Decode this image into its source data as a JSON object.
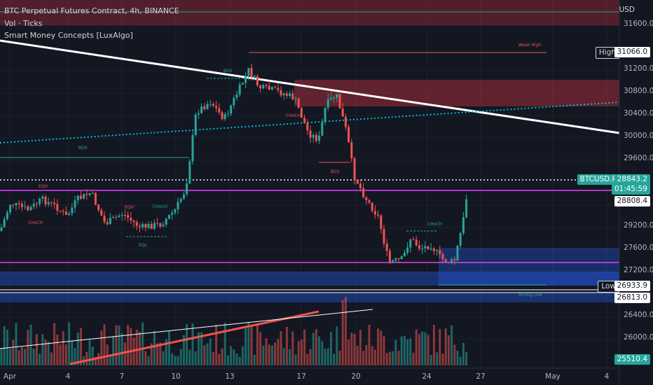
{
  "header": {
    "symbol_line": "BTC Perpetual Futures Contract, 4h, BINANCE",
    "volume_indicator": "Vol · Ticks",
    "smc_indicator": "Smart Money Concepts [LuxAlgo]",
    "currency": "USD"
  },
  "price_axis": {
    "ticks": [
      "31600.0",
      "31200.0",
      "30800.0",
      "30400.0",
      "30000.0",
      "29600.0",
      "29200.0",
      "27600.0",
      "27200.0",
      "26400.0",
      "26000.0"
    ]
  },
  "markers": {
    "high": {
      "label": "High",
      "value": "31066.0"
    },
    "last": {
      "label": "BTCUSD.P",
      "value": "28843.2",
      "countdown": "01:45:59"
    },
    "line_28808": {
      "value": "28808.4"
    },
    "low": {
      "label": "Low",
      "value": "26933.9"
    },
    "line_26813": {
      "value": "26813.0"
    },
    "volume_last": {
      "value": "25510.4"
    }
  },
  "time_axis": {
    "ticks": [
      "Apr",
      "4",
      "7",
      "10",
      "13",
      "17",
      "20",
      "24",
      "27",
      "May",
      "4"
    ]
  },
  "smc_labels": {
    "bos": "BOS",
    "choch": "CHoCH",
    "eqh": "EQH",
    "eql": "EQL",
    "weak_high": "Weak High",
    "strong_low": "Strong Low"
  },
  "colors": {
    "background": "#131722",
    "up": "#26a69a",
    "down": "#ef5350",
    "magenta": "#e040fb",
    "supply_zone": "#f23645",
    "demand_zone": "#2962ff"
  }
}
